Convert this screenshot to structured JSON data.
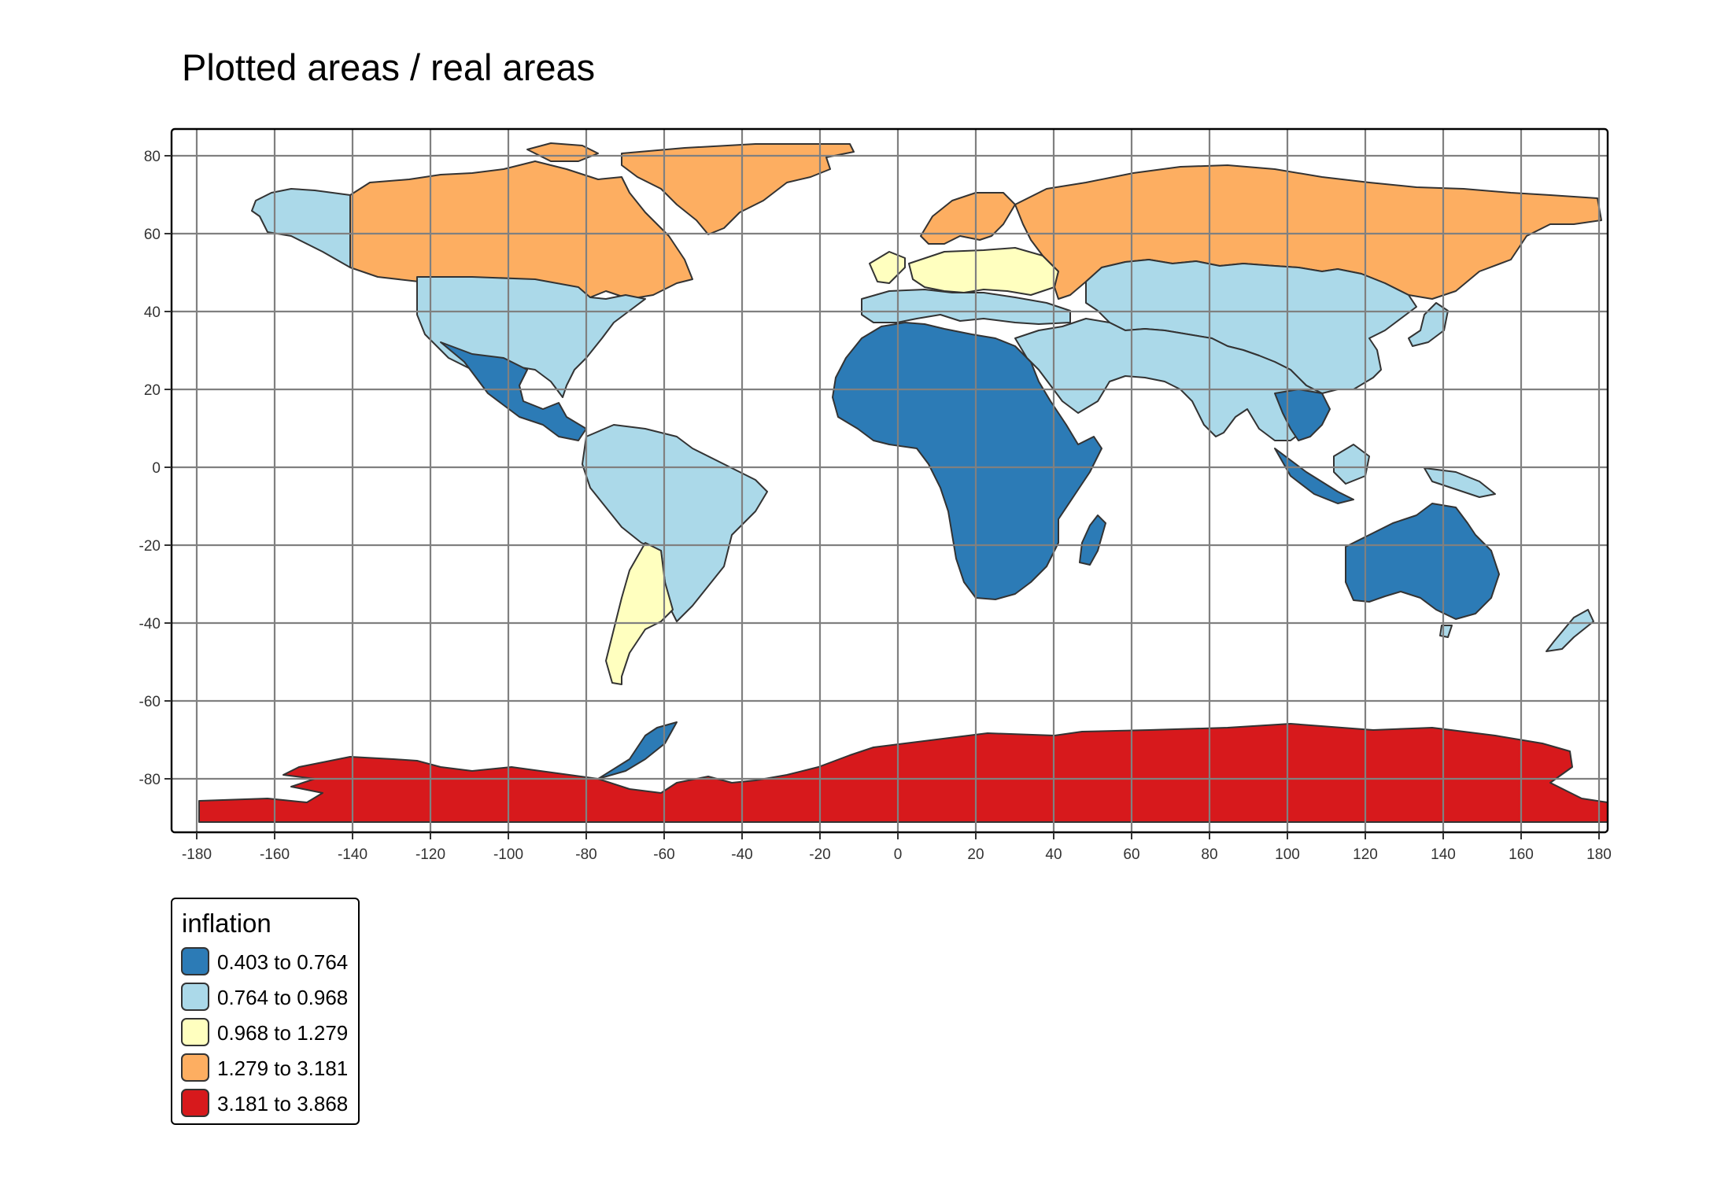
{
  "title": "Plotted areas / real areas",
  "axes": {
    "x_ticks": [
      "-180",
      "-160",
      "-140",
      "-120",
      "-100",
      "-80",
      "-60",
      "-40",
      "-20",
      "0",
      "20",
      "40",
      "60",
      "80",
      "100",
      "120",
      "140",
      "160",
      "180"
    ],
    "y_ticks": [
      "80",
      "60",
      "40",
      "20",
      "0",
      "-20",
      "-40",
      "-60",
      "-80"
    ],
    "x_range": [
      -180,
      180
    ],
    "y_range": [
      -90,
      83.6
    ],
    "grid": true,
    "grid_color": "#808080"
  },
  "legend": {
    "title": "inflation",
    "placement": "bottom-left",
    "items": [
      {
        "label": "0.403 to 0.764",
        "color": "#2c7bb6"
      },
      {
        "label": "0.764 to 0.968",
        "color": "#abd9e9"
      },
      {
        "label": "0.968 to 1.279",
        "color": "#ffffbf"
      },
      {
        "label": "1.279 to 3.181",
        "color": "#fdae61"
      },
      {
        "label": "3.181 to 3.868",
        "color": "#d7191c"
      }
    ]
  },
  "map": {
    "projection": "equirectangular (longitude/latitude)",
    "border_color": "#333333",
    "regions": [
      {
        "name": "Antarctica",
        "class": 5
      },
      {
        "name": "Greenland",
        "class": 4
      },
      {
        "name": "Canada",
        "class": 4
      },
      {
        "name": "Russia",
        "class": 4
      },
      {
        "name": "Scandinavia",
        "class": 4
      },
      {
        "name": "Alaska",
        "class": 2
      },
      {
        "name": "United States",
        "class": 2
      },
      {
        "name": "China & Central Asia",
        "class": 2
      },
      {
        "name": "Southern South America",
        "class": 2
      },
      {
        "name": "Japan",
        "class": 2
      },
      {
        "name": "New Zealand",
        "class": 2
      },
      {
        "name": "Southern Europe & Middle East",
        "class": 2
      },
      {
        "name": "Central Europe",
        "class": 3
      },
      {
        "name": "Mexico & Central America",
        "class": 1
      },
      {
        "name": "Northern South America",
        "class": 1
      },
      {
        "name": "Africa",
        "class": 1
      },
      {
        "name": "Madagascar",
        "class": 1
      },
      {
        "name": "Arabia & Iran",
        "class": 1
      },
      {
        "name": "South Asia",
        "class": 1
      },
      {
        "name": "Southeast Asia",
        "class": 1
      },
      {
        "name": "Indonesia",
        "class": 1
      },
      {
        "name": "Australia",
        "class": 1
      }
    ]
  }
}
